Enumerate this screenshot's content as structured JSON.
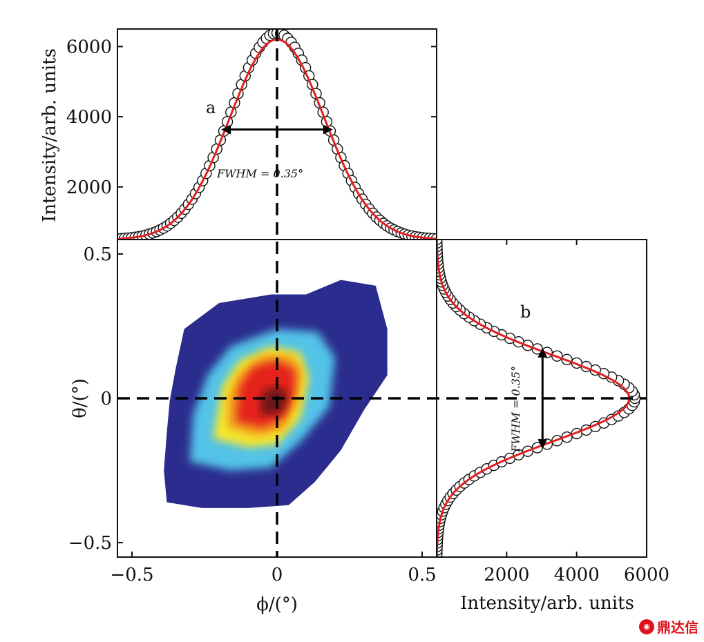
{
  "colors": {
    "fit": "#e02020",
    "marker": "#111111",
    "axis": "#111111",
    "watermark": "#e0101a"
  },
  "watermark": {
    "text": "鼎达信",
    "icon": "logo-icon"
  },
  "chart_data": [
    {
      "id": "a",
      "type": "line",
      "panel_label": "a",
      "ylabel": "Intensity/arb. units",
      "xlabel": "",
      "xlim": [
        -0.5,
        0.5
      ],
      "ylim": [
        500,
        6500
      ],
      "yticks": [
        2000,
        4000,
        6000
      ],
      "ytick_labels": [
        "2000",
        "4000",
        "6000"
      ],
      "annotation": "FWHM = 0.35°",
      "fwhm": 0.35,
      "center": 0,
      "amplitude": 5700,
      "baseline": 500,
      "series": [
        {
          "name": "",
          "kind": "markers",
          "x": [
            -0.5,
            -0.46,
            -0.42,
            -0.38,
            -0.34,
            -0.3,
            -0.26,
            -0.22,
            -0.18,
            -0.14,
            -0.1,
            -0.06,
            -0.02,
            0.02,
            0.06,
            0.1,
            0.14,
            0.18,
            0.22,
            0.26,
            0.3,
            0.34,
            0.38,
            0.42,
            0.46,
            0.5
          ],
          "y": [
            500,
            505,
            520,
            560,
            680,
            930,
            1420,
            2200,
            3150,
            4150,
            5050,
            5700,
            6150,
            6200,
            5850,
            5200,
            4300,
            3250,
            2250,
            1450,
            950,
            680,
            560,
            520,
            505,
            500
          ]
        },
        {
          "name": "",
          "kind": "fit",
          "x": [
            -0.5,
            -0.4,
            -0.3,
            -0.25,
            -0.2,
            -0.15,
            -0.1,
            -0.05,
            0,
            0.05,
            0.1,
            0.15,
            0.2,
            0.25,
            0.3,
            0.4,
            0.5
          ],
          "y": [
            500,
            540,
            900,
            1400,
            2200,
            3200,
            4350,
            5500,
            6200,
            5500,
            4350,
            3200,
            2200,
            1400,
            900,
            540,
            500
          ]
        }
      ]
    },
    {
      "id": "b",
      "type": "line",
      "panel_label": "b",
      "xlabel": "Intensity/arb. units",
      "ylabel": "",
      "xlim": [
        0,
        6000
      ],
      "ylim": [
        -0.55,
        0.55
      ],
      "xticks": [
        2000,
        4000,
        6000
      ],
      "xtick_labels": [
        "2000",
        "4000",
        "6000"
      ],
      "annotation": "FWHM = 0.35°",
      "fwhm": 0.35,
      "center": 0,
      "amplitude": 5500,
      "baseline": 0,
      "series": [
        {
          "name": "",
          "kind": "markers",
          "y": [
            0.55,
            0.5,
            0.45,
            0.4,
            0.35,
            0.3,
            0.25,
            0.2,
            0.15,
            0.1,
            0.05,
            0,
            -0.05,
            -0.1,
            -0.15,
            -0.2,
            -0.25,
            -0.3,
            -0.35,
            -0.4,
            -0.45,
            -0.5,
            -0.55
          ],
          "x": [
            40,
            90,
            170,
            330,
            620,
            1100,
            1800,
            2700,
            3650,
            4550,
            5200,
            5500,
            5200,
            4550,
            3650,
            2700,
            1800,
            1100,
            620,
            330,
            170,
            90,
            40
          ]
        },
        {
          "name": "",
          "kind": "fit",
          "y": [
            0.55,
            0.45,
            0.35,
            0.25,
            0.2,
            0.15,
            0.1,
            0.05,
            0,
            -0.05,
            -0.1,
            -0.15,
            -0.2,
            -0.25,
            -0.35,
            -0.45,
            -0.55
          ],
          "x": [
            30,
            170,
            620,
            1800,
            2700,
            3650,
            4550,
            5200,
            5500,
            5200,
            4550,
            3650,
            2700,
            1800,
            620,
            170,
            30
          ]
        }
      ]
    },
    {
      "id": "main",
      "type": "heatmap",
      "xlabel": "ϕ/(°)",
      "ylabel": "θ/(°)",
      "xlim": [
        -0.55,
        0.55
      ],
      "ylim": [
        -0.55,
        0.55
      ],
      "xticks": [
        -0.5,
        0,
        0.5
      ],
      "xtick_labels": [
        "−0.5",
        "0",
        "0.5"
      ],
      "yticks": [
        -0.5,
        0,
        0.5
      ],
      "ytick_labels": [
        "−0.5",
        "0",
        "0.5"
      ],
      "colormap": [
        "#2b2d8e",
        "#3b6fd1",
        "#52c3e8",
        "#9be36a",
        "#f6e62b",
        "#f39a1e",
        "#e5231c",
        "#6e1212"
      ],
      "levels": [
        {
          "color": "#2b2d8e",
          "points": [
            [
              -0.38,
              -0.36
            ],
            [
              -0.26,
              -0.38
            ],
            [
              -0.1,
              -0.38
            ],
            [
              0.04,
              -0.37
            ],
            [
              0.13,
              -0.29
            ],
            [
              0.22,
              -0.18
            ],
            [
              0.3,
              -0.04
            ],
            [
              0.38,
              0.08
            ],
            [
              0.38,
              0.24
            ],
            [
              0.34,
              0.39
            ],
            [
              0.22,
              0.41
            ],
            [
              0.1,
              0.36
            ],
            [
              -0.02,
              0.36
            ],
            [
              -0.2,
              0.33
            ],
            [
              -0.32,
              0.24
            ],
            [
              -0.35,
              0.1
            ],
            [
              -0.37,
              -0.01
            ],
            [
              -0.38,
              -0.12
            ],
            [
              -0.39,
              -0.25
            ]
          ]
        },
        {
          "color": "#52c3e8",
          "points": [
            [
              -0.3,
              -0.22
            ],
            [
              -0.16,
              -0.25
            ],
            [
              -0.02,
              -0.24
            ],
            [
              0.08,
              -0.15
            ],
            [
              0.18,
              -0.03
            ],
            [
              0.2,
              0.14
            ],
            [
              0.14,
              0.23
            ],
            [
              0.0,
              0.24
            ],
            [
              -0.16,
              0.18
            ],
            [
              -0.24,
              0.08
            ],
            [
              -0.29,
              -0.06
            ]
          ]
        },
        {
          "color": "#f6e62b",
          "points": [
            [
              -0.22,
              -0.14
            ],
            [
              -0.1,
              -0.17
            ],
            [
              0.0,
              -0.16
            ],
            [
              0.08,
              -0.07
            ],
            [
              0.11,
              0.07
            ],
            [
              0.08,
              0.16
            ],
            [
              -0.02,
              0.18
            ],
            [
              -0.13,
              0.13
            ],
            [
              -0.19,
              0.04
            ]
          ]
        },
        {
          "color": "#f39a1e",
          "points": [
            [
              -0.17,
              -0.1
            ],
            [
              -0.07,
              -0.13
            ],
            [
              0.02,
              -0.11
            ],
            [
              0.07,
              -0.02
            ],
            [
              0.09,
              0.09
            ],
            [
              0.05,
              0.15
            ],
            [
              -0.05,
              0.15
            ],
            [
              -0.13,
              0.09
            ],
            [
              -0.17,
              0.0
            ]
          ]
        },
        {
          "color": "#e5231c",
          "points": [
            [
              -0.14,
              -0.08
            ],
            [
              -0.05,
              -0.1
            ],
            [
              0.02,
              -0.07
            ],
            [
              0.06,
              0.02
            ],
            [
              0.06,
              0.1
            ],
            [
              0.0,
              0.13
            ],
            [
              -0.08,
              0.11
            ],
            [
              -0.13,
              0.04
            ]
          ]
        },
        {
          "color": "#6e1212",
          "points": [
            [
              -0.05,
              -0.06
            ],
            [
              0.02,
              -0.05
            ],
            [
              0.04,
              0.01
            ],
            [
              0.01,
              0.04
            ],
            [
              -0.04,
              0.03
            ],
            [
              -0.06,
              -0.01
            ]
          ]
        }
      ],
      "crosshair": {
        "x": 0,
        "y": 0,
        "style": "dashed"
      }
    }
  ]
}
